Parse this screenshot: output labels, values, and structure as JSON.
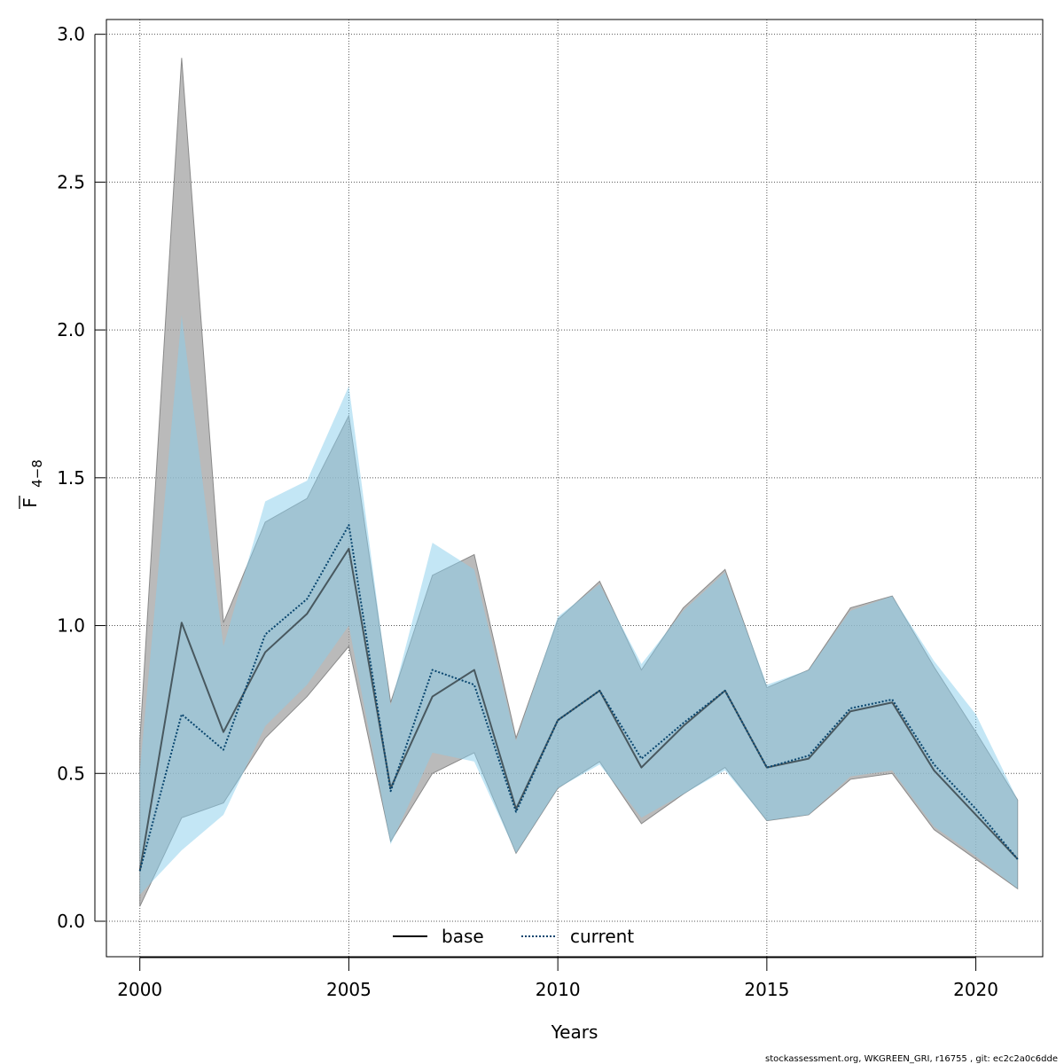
{
  "chart_data": {
    "type": "line",
    "xlabel": "Years",
    "ylabel": {
      "main": "F",
      "subscript": "4−8"
    },
    "xlim": [
      1999.2,
      2021.6
    ],
    "ylim": [
      -0.12,
      3.05
    ],
    "xticks": [
      2000,
      2005,
      2010,
      2015,
      2020
    ],
    "yticks": [
      0.0,
      0.5,
      1.0,
      1.5,
      2.0,
      2.5,
      3.0
    ],
    "ytick_labels": [
      "0.0",
      "0.5",
      "1.0",
      "1.5",
      "2.0",
      "2.5",
      "3.0"
    ],
    "grid": true,
    "legend_position": "bottom-center",
    "x": [
      2000,
      2001,
      2002,
      2003,
      2004,
      2005,
      2006,
      2007,
      2008,
      2009,
      2010,
      2011,
      2012,
      2013,
      2014,
      2015,
      2016,
      2017,
      2018,
      2019,
      2020,
      2021
    ],
    "series": [
      {
        "name": "base",
        "line_color": "#000000",
        "line_style": "solid",
        "band_color": "#a0a0a0",
        "values": [
          0.17,
          1.01,
          0.64,
          0.91,
          1.04,
          1.26,
          0.45,
          0.76,
          0.85,
          0.38,
          0.68,
          0.78,
          0.52,
          0.66,
          0.78,
          0.52,
          0.55,
          0.71,
          0.74,
          0.51,
          0.36,
          0.21
        ],
        "lower": [
          0.05,
          0.35,
          0.4,
          0.62,
          0.76,
          0.93,
          0.27,
          0.5,
          0.57,
          0.23,
          0.45,
          0.54,
          0.33,
          0.43,
          0.52,
          0.34,
          0.36,
          0.48,
          0.5,
          0.31,
          0.21,
          0.11
        ],
        "upper": [
          0.61,
          2.92,
          1.01,
          1.35,
          1.43,
          1.71,
          0.74,
          1.17,
          1.24,
          0.62,
          1.02,
          1.15,
          0.85,
          1.06,
          1.19,
          0.79,
          0.85,
          1.06,
          1.1,
          0.86,
          0.64,
          0.41
        ]
      },
      {
        "name": "current",
        "line_color": "#08456e",
        "line_style": "dotted",
        "band_color": "#87ceeb",
        "values": [
          0.17,
          0.7,
          0.58,
          0.97,
          1.09,
          1.34,
          0.44,
          0.85,
          0.8,
          0.37,
          0.68,
          0.78,
          0.55,
          0.67,
          0.78,
          0.52,
          0.56,
          0.72,
          0.75,
          0.53,
          0.38,
          0.21
        ],
        "lower": [
          0.09,
          0.24,
          0.36,
          0.66,
          0.8,
          1.0,
          0.26,
          0.57,
          0.54,
          0.23,
          0.45,
          0.53,
          0.35,
          0.43,
          0.51,
          0.34,
          0.36,
          0.49,
          0.51,
          0.32,
          0.22,
          0.11
        ],
        "upper": [
          0.51,
          2.05,
          0.93,
          1.42,
          1.49,
          1.81,
          0.73,
          1.28,
          1.19,
          0.61,
          1.03,
          1.14,
          0.87,
          1.05,
          1.18,
          0.8,
          0.85,
          1.05,
          1.1,
          0.88,
          0.7,
          0.41
        ]
      }
    ]
  },
  "footer": "stockassessment.org, WKGREEN_GRI, r16755 , git: ec2c2a0c6dde"
}
